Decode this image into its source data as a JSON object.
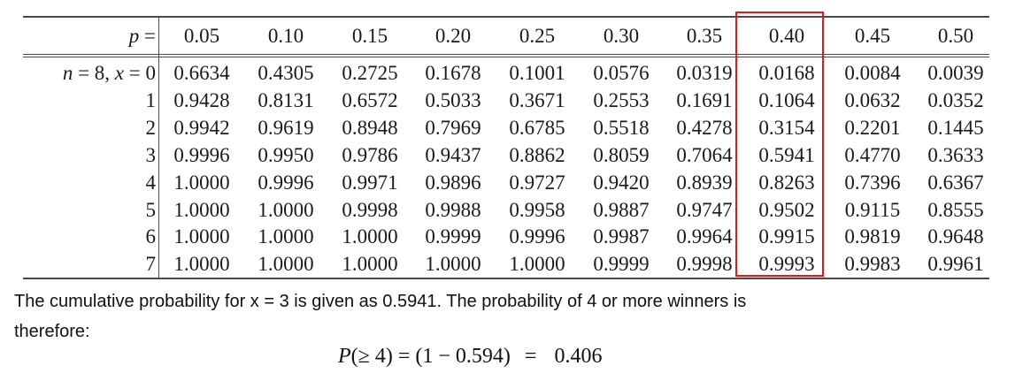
{
  "table": {
    "p_label": "p =",
    "row_label_first": "n = 8, x = 0",
    "p_values": [
      "0.05",
      "0.10",
      "0.15",
      "0.20",
      "0.25",
      "0.30",
      "0.35",
      "0.40",
      "0.45",
      "0.50"
    ],
    "highlighted_column": "0.40",
    "highlight_color": "#e01a1a",
    "rows": [
      {
        "x": "0",
        "values": [
          "0.6634",
          "0.4305",
          "0.2725",
          "0.1678",
          "0.1001",
          "0.0576",
          "0.0319",
          "0.0168",
          "0.0084",
          "0.0039"
        ]
      },
      {
        "x": "1",
        "values": [
          "0.9428",
          "0.8131",
          "0.6572",
          "0.5033",
          "0.3671",
          "0.2553",
          "0.1691",
          "0.1064",
          "0.0632",
          "0.0352"
        ]
      },
      {
        "x": "2",
        "values": [
          "0.9942",
          "0.9619",
          "0.8948",
          "0.7969",
          "0.6785",
          "0.5518",
          "0.4278",
          "0.3154",
          "0.2201",
          "0.1445"
        ]
      },
      {
        "x": "3",
        "values": [
          "0.9996",
          "0.9950",
          "0.9786",
          "0.9437",
          "0.8862",
          "0.8059",
          "0.7064",
          "0.5941",
          "0.4770",
          "0.3633"
        ]
      },
      {
        "x": "4",
        "values": [
          "1.0000",
          "0.9996",
          "0.9971",
          "0.9896",
          "0.9727",
          "0.9420",
          "0.8939",
          "0.8263",
          "0.7396",
          "0.6367"
        ]
      },
      {
        "x": "5",
        "values": [
          "1.0000",
          "1.0000",
          "0.9998",
          "0.9988",
          "0.9958",
          "0.9887",
          "0.9747",
          "0.9502",
          "0.9115",
          "0.8555"
        ]
      },
      {
        "x": "6",
        "values": [
          "1.0000",
          "1.0000",
          "1.0000",
          "0.9999",
          "0.9996",
          "0.9987",
          "0.9964",
          "0.9915",
          "0.9819",
          "0.9648"
        ]
      },
      {
        "x": "7",
        "values": [
          "1.0000",
          "1.0000",
          "1.0000",
          "1.0000",
          "1.0000",
          "0.9999",
          "0.9998",
          "0.9993",
          "0.9983",
          "0.9961"
        ]
      }
    ]
  },
  "explanation": {
    "line1": "The cumulative probability for x = 3 is given as  0.5941.  The probability of 4 or more winners is",
    "line2": "therefore:"
  },
  "formula": {
    "var": "P",
    "condition": "(≥ 4)",
    "equals1": "=",
    "expression": "(1 − 0.594)",
    "equals2": "=",
    "result": "0.406"
  }
}
